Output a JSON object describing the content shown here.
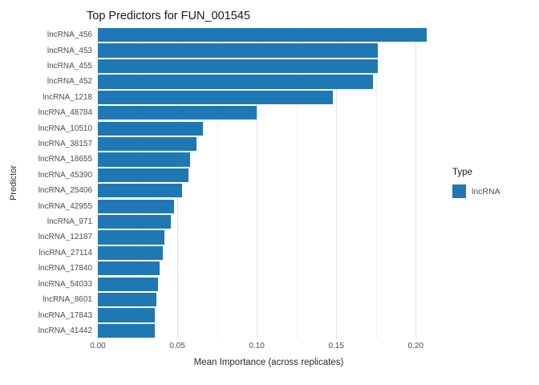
{
  "legend": {
    "title": "Type",
    "items": [
      {
        "label": "lncRNA",
        "color": "#1f78b4"
      }
    ]
  },
  "chart_data": {
    "type": "bar",
    "orientation": "horizontal",
    "title": "Top Predictors for FUN_001545",
    "xlabel": "Mean Importance (across replicates)",
    "ylabel": "Predictor",
    "categories": [
      "lncRNA_456",
      "lncRNA_453",
      "lncRNA_455",
      "lncRNA_452",
      "lncRNA_1218",
      "lncRNA_48784",
      "lncRNA_10510",
      "lncRNA_38157",
      "lncRNA_18655",
      "lncRNA_45390",
      "lncRNA_25406",
      "lncRNA_42955",
      "lncRNA_971",
      "lncRNA_12187",
      "lncRNA_27114",
      "lncRNA_17840",
      "lncRNA_54033",
      "lncRNA_8601",
      "lncRNA_17843",
      "lncRNA_41442"
    ],
    "values": [
      0.207,
      0.176,
      0.176,
      0.173,
      0.148,
      0.1,
      0.066,
      0.062,
      0.058,
      0.057,
      0.053,
      0.048,
      0.046,
      0.042,
      0.041,
      0.039,
      0.038,
      0.037,
      0.036,
      0.036
    ],
    "xlim": [
      0,
      0.215
    ],
    "xticks": [
      0,
      0.05,
      0.1,
      0.15,
      0.2
    ],
    "xtick_labels": [
      "0.00",
      "0.05",
      "0.10",
      "0.15",
      "0.20"
    ],
    "bar_color": "#1f78b4",
    "grid": "vertical major + minor, light gray on white",
    "legend_position": "right"
  }
}
